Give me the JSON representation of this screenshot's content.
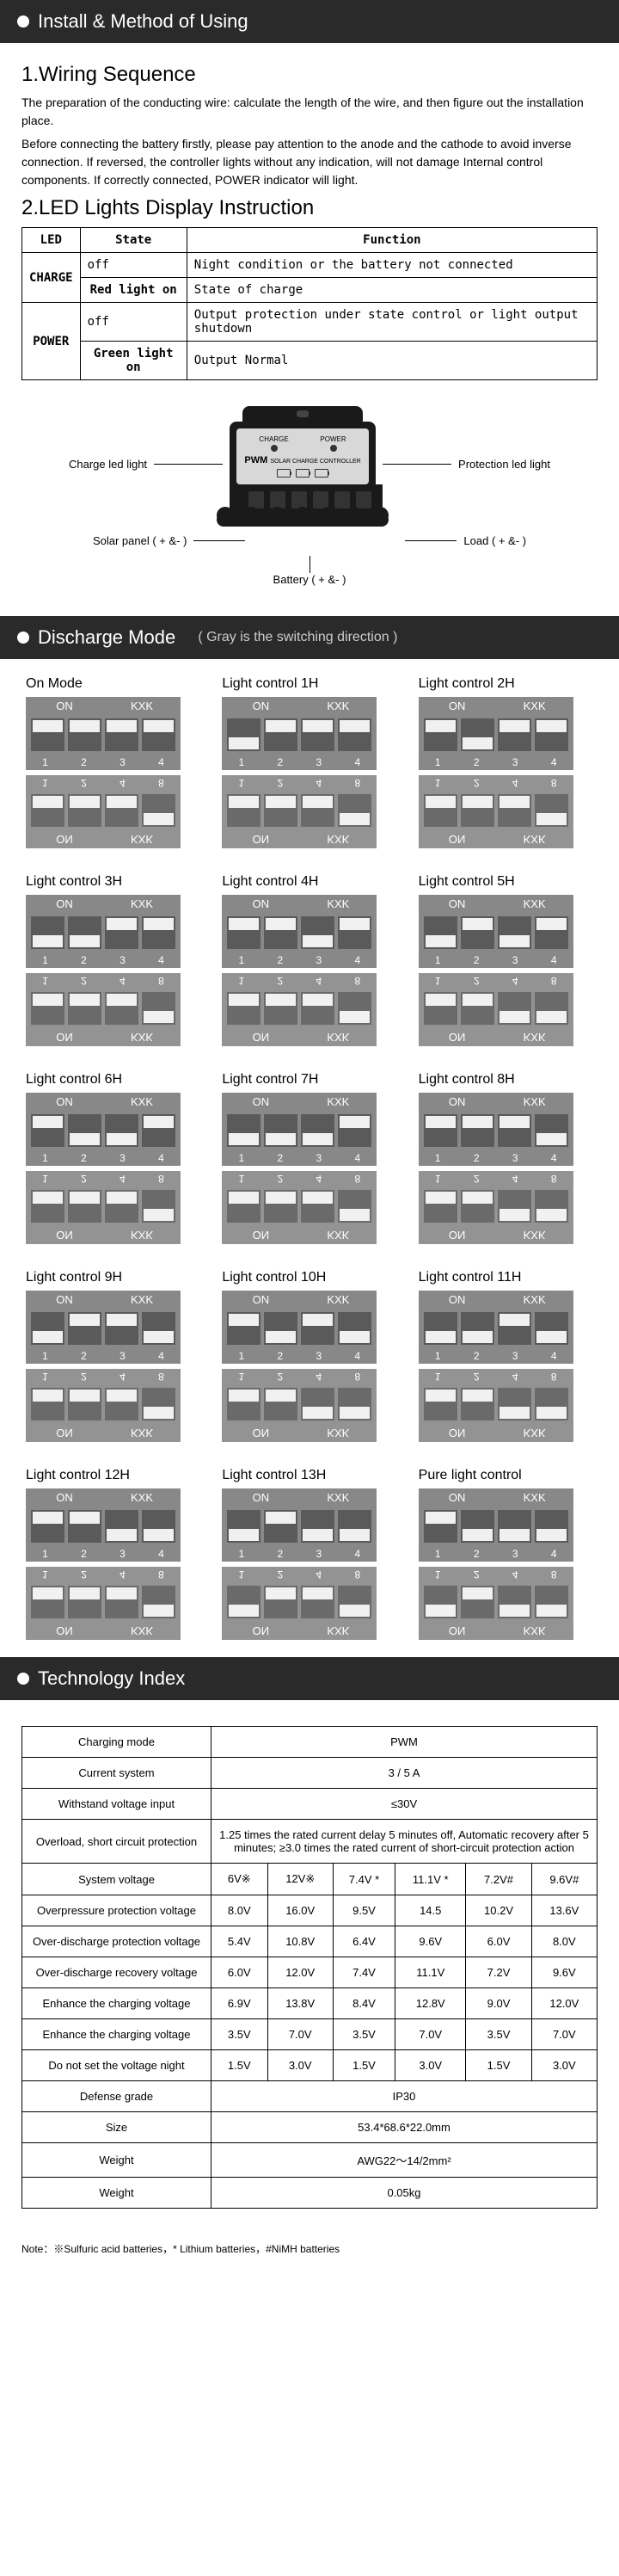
{
  "s1": {
    "header": "Install & Method of Using",
    "h1": "1.Wiring Sequence",
    "p1": "The preparation of the conducting wire: calculate the length of the wire, and then figure out the installation place.",
    "p2": "Before connecting the battery firstly, please pay attention to the anode and the cathode to avoid inverse connection. If reversed, the controller lights without any indication, will not damage Internal control components. If correctly connected, POWER indicator will light.",
    "h2": "2.LED Lights Display Instruction",
    "th": [
      "LED",
      "State",
      "Function"
    ],
    "rows": [
      [
        "CHARGE",
        "off",
        "Night condition or the battery not connected"
      ],
      [
        "",
        "Red light on",
        "State of charge"
      ],
      [
        "POWER",
        "off",
        "Output protection under state control or light output shutdown"
      ],
      [
        "",
        "Green light on",
        "Output Normal"
      ]
    ],
    "labels": {
      "chargeLed": "Charge led light",
      "protLed": "Protection led light",
      "solar": "Solar panel ( + &- )",
      "load": "Load ( + &- )",
      "batt": "Battery ( + &- )",
      "charge": "CHARGE",
      "power": "POWER",
      "pwm": "PWM",
      "sub": "SOLAR CHARGE CONTROLLER"
    }
  },
  "s2": {
    "header": "Discharge Mode",
    "note": "( Gray is the switching direction )",
    "items": [
      {
        "t": "On Mode",
        "p": [
          1,
          1,
          1,
          1
        ],
        "m": [
          0,
          0,
          0,
          1
        ]
      },
      {
        "t": "Light control 1H",
        "p": [
          0,
          1,
          1,
          1
        ],
        "m": [
          0,
          0,
          0,
          1
        ]
      },
      {
        "t": "Light control 2H",
        "p": [
          1,
          0,
          1,
          1
        ],
        "m": [
          0,
          0,
          0,
          1
        ]
      },
      {
        "t": "Light control 3H",
        "p": [
          0,
          0,
          1,
          1
        ],
        "m": [
          0,
          0,
          0,
          1
        ]
      },
      {
        "t": "Light control 4H",
        "p": [
          1,
          1,
          0,
          1
        ],
        "m": [
          0,
          0,
          0,
          1
        ]
      },
      {
        "t": "Light control 5H",
        "p": [
          0,
          1,
          0,
          1
        ],
        "m": [
          0,
          0,
          1,
          1
        ]
      },
      {
        "t": "Light control 6H",
        "p": [
          1,
          0,
          0,
          1
        ],
        "m": [
          0,
          0,
          0,
          1
        ]
      },
      {
        "t": "Light control 7H",
        "p": [
          0,
          0,
          0,
          1
        ],
        "m": [
          0,
          0,
          0,
          1
        ]
      },
      {
        "t": "Light control 8H",
        "p": [
          1,
          1,
          1,
          0
        ],
        "m": [
          0,
          0,
          1,
          1
        ]
      },
      {
        "t": "Light control 9H",
        "p": [
          0,
          1,
          1,
          0
        ],
        "m": [
          0,
          0,
          0,
          1
        ]
      },
      {
        "t": "Light control 10H",
        "p": [
          1,
          0,
          1,
          0
        ],
        "m": [
          0,
          0,
          1,
          1
        ]
      },
      {
        "t": "Light control 11H",
        "p": [
          0,
          0,
          1,
          0
        ],
        "m": [
          0,
          0,
          1,
          1
        ]
      },
      {
        "t": "Light control 12H",
        "p": [
          1,
          1,
          0,
          0
        ],
        "m": [
          0,
          0,
          0,
          1
        ]
      },
      {
        "t": "Light control 13H",
        "p": [
          0,
          1,
          0,
          0
        ],
        "m": [
          1,
          0,
          0,
          1
        ]
      },
      {
        "t": "Pure light control",
        "p": [
          1,
          0,
          0,
          0
        ],
        "m": [
          1,
          0,
          1,
          1
        ]
      }
    ],
    "dipLabels": {
      "on": "ON",
      "kxk": "KXK",
      "nums": [
        "1",
        "2",
        "3",
        "4"
      ],
      "mnums": [
        "1",
        "2",
        "4",
        "8"
      ]
    }
  },
  "s3": {
    "header": "Technology Index",
    "rows": [
      {
        "l": "Charging mode",
        "v": [
          "PWM"
        ],
        "span": 6
      },
      {
        "l": "Current system",
        "v": [
          "3 / 5 A"
        ],
        "span": 6
      },
      {
        "l": "Withstand voltage input",
        "v": [
          "≤30V"
        ],
        "span": 6
      },
      {
        "l": "Overload, short circuit protection",
        "v": [
          "1.25 times the rated current delay 5 minutes off, Automatic recovery after 5 minutes; ≥3.0 times the rated current of short-circuit protection action"
        ],
        "span": 6
      },
      {
        "l": "System voltage",
        "v": [
          "6V※",
          "12V※",
          "7.4V *",
          "11.1V *",
          "7.2V#",
          "9.6V#"
        ]
      },
      {
        "l": "Overpressure protection voltage",
        "v": [
          "8.0V",
          "16.0V",
          "9.5V",
          "14.5",
          "10.2V",
          "13.6V"
        ]
      },
      {
        "l": "Over-discharge protection voltage",
        "v": [
          "5.4V",
          "10.8V",
          "6.4V",
          "9.6V",
          "6.0V",
          "8.0V"
        ]
      },
      {
        "l": "Over-discharge recovery voltage",
        "v": [
          "6.0V",
          "12.0V",
          "7.4V",
          "11.1V",
          "7.2V",
          "9.6V"
        ]
      },
      {
        "l": "Enhance the charging voltage",
        "v": [
          "6.9V",
          "13.8V",
          "8.4V",
          "12.8V",
          "9.0V",
          "12.0V"
        ]
      },
      {
        "l": "Enhance the charging voltage",
        "v": [
          "3.5V",
          "7.0V",
          "3.5V",
          "7.0V",
          "3.5V",
          "7.0V"
        ]
      },
      {
        "l": "Do not set the voltage night",
        "v": [
          "1.5V",
          "3.0V",
          "1.5V",
          "3.0V",
          "1.5V",
          "3.0V"
        ]
      },
      {
        "l": "Defense grade",
        "v": [
          "IP30"
        ],
        "span": 6
      },
      {
        "l": "Size",
        "v": [
          "53.4*68.6*22.0mm"
        ],
        "span": 6
      },
      {
        "l": "Weight",
        "v": [
          "AWG22～14/2mm²"
        ],
        "span": 6
      },
      {
        "l": "Weight",
        "v": [
          "0.05kg"
        ],
        "span": 6
      }
    ],
    "note": "Note：※Sulfuric acid batteries，* Lithium batteries，#NiMH batteries"
  }
}
